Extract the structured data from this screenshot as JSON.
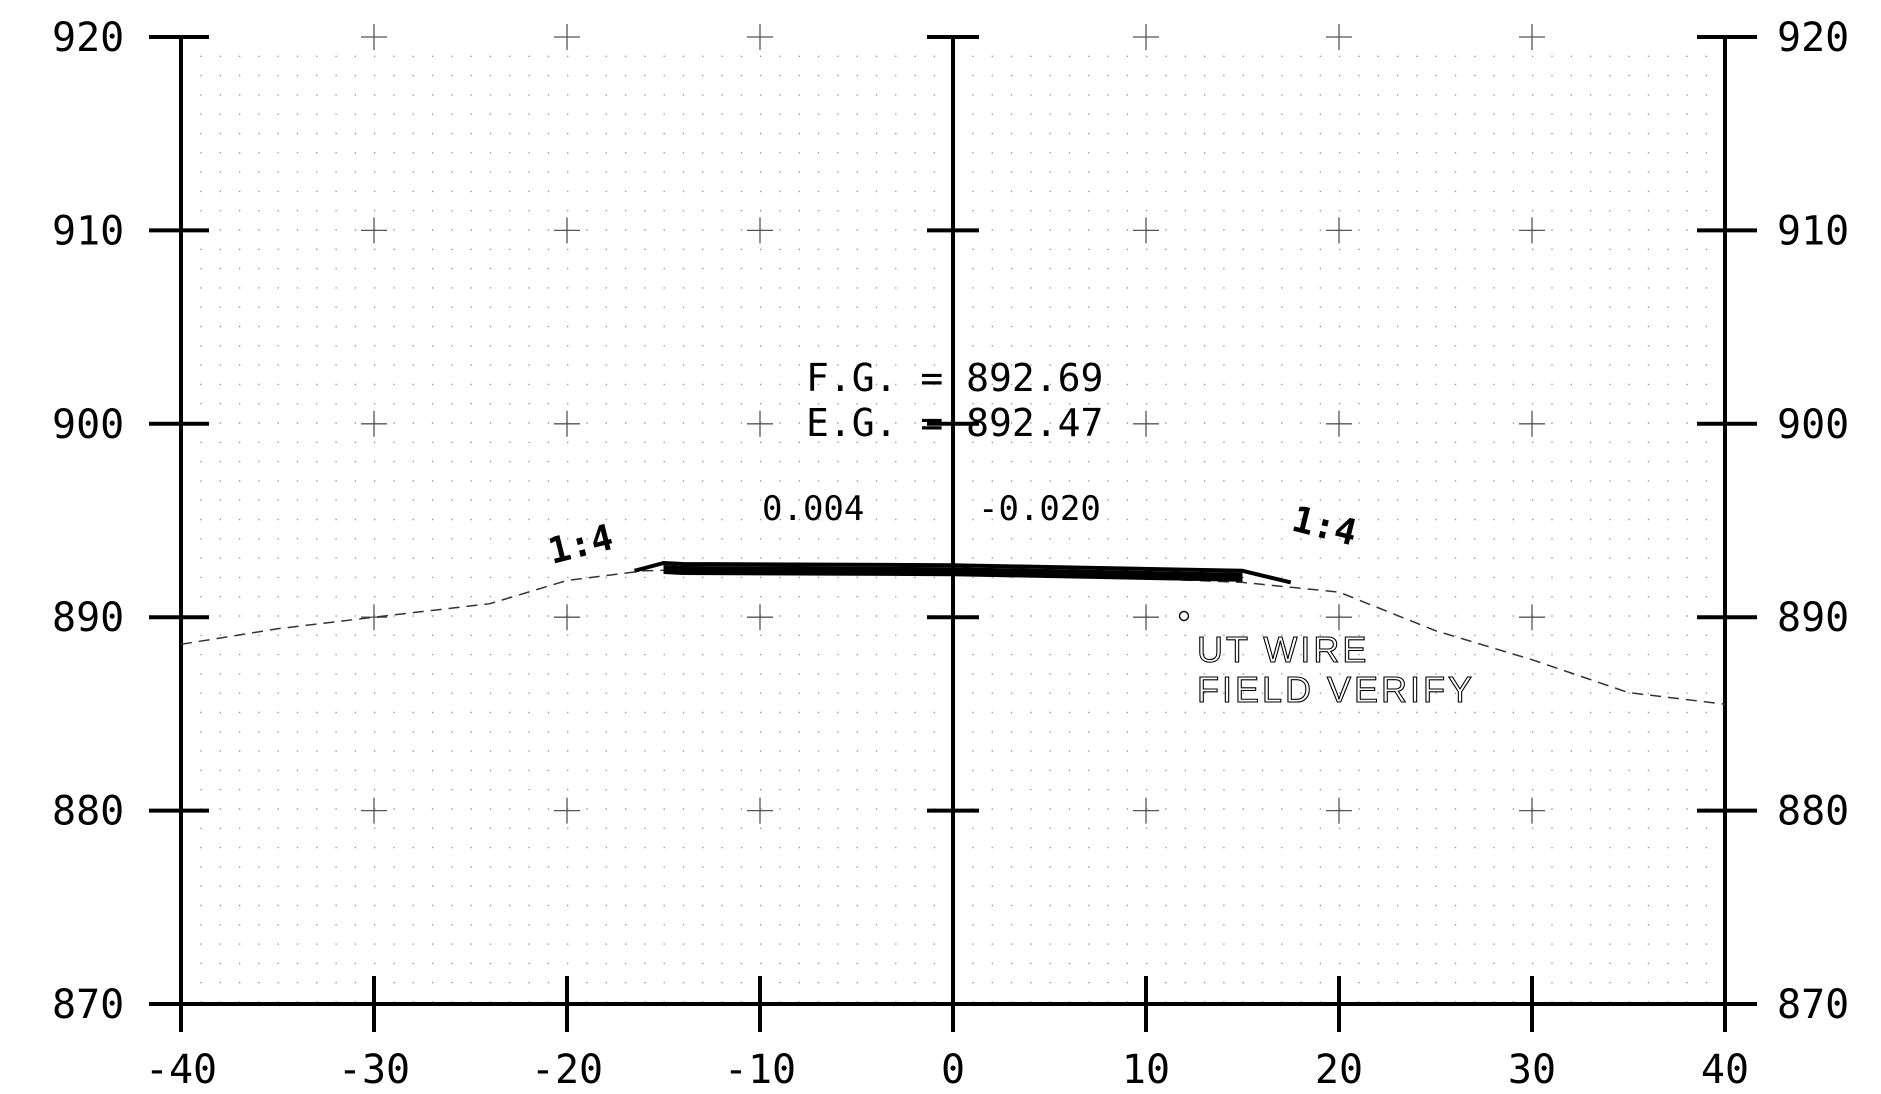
{
  "chart_data": {
    "type": "line",
    "x_ticks": [
      -40,
      -30,
      -20,
      -10,
      0,
      10,
      20,
      30,
      40
    ],
    "y_ticks": [
      870,
      880,
      890,
      900,
      910,
      920
    ],
    "xlim": [
      -40,
      40
    ],
    "ylim": [
      870,
      920
    ],
    "grid": "dotted grid with cross marks at every 10 units",
    "series": [
      {
        "style": "dashed",
        "description_key": "existing-ground",
        "x": [
          -40,
          -35,
          -30,
          -24,
          -20,
          -16,
          -14,
          -10,
          0,
          10,
          15,
          20,
          25,
          30,
          35,
          40
        ],
        "y": [
          888.6,
          889.4,
          890.0,
          890.7,
          891.9,
          892.4,
          892.45,
          892.5,
          892.5,
          892.0,
          891.8,
          891.3,
          889.3,
          887.8,
          886.1,
          885.5
        ]
      },
      {
        "style": "thick",
        "description_key": "proposed-grade",
        "x": [
          -16.5,
          -15,
          -14,
          0,
          15,
          17.5
        ],
        "y": [
          892.4,
          892.8,
          892.75,
          892.69,
          892.4,
          891.8
        ]
      }
    ],
    "annotations": {
      "fg": "F.G. = 892.69",
      "eg": "E.G. = 892.47",
      "left_cross_slope": "0.004",
      "right_cross_slope": "-0.020",
      "left_side_slope": "1:4",
      "right_side_slope": "1:4",
      "utility_line1": "UT WIRE",
      "utility_line2": "FIELD VERIFY"
    }
  }
}
